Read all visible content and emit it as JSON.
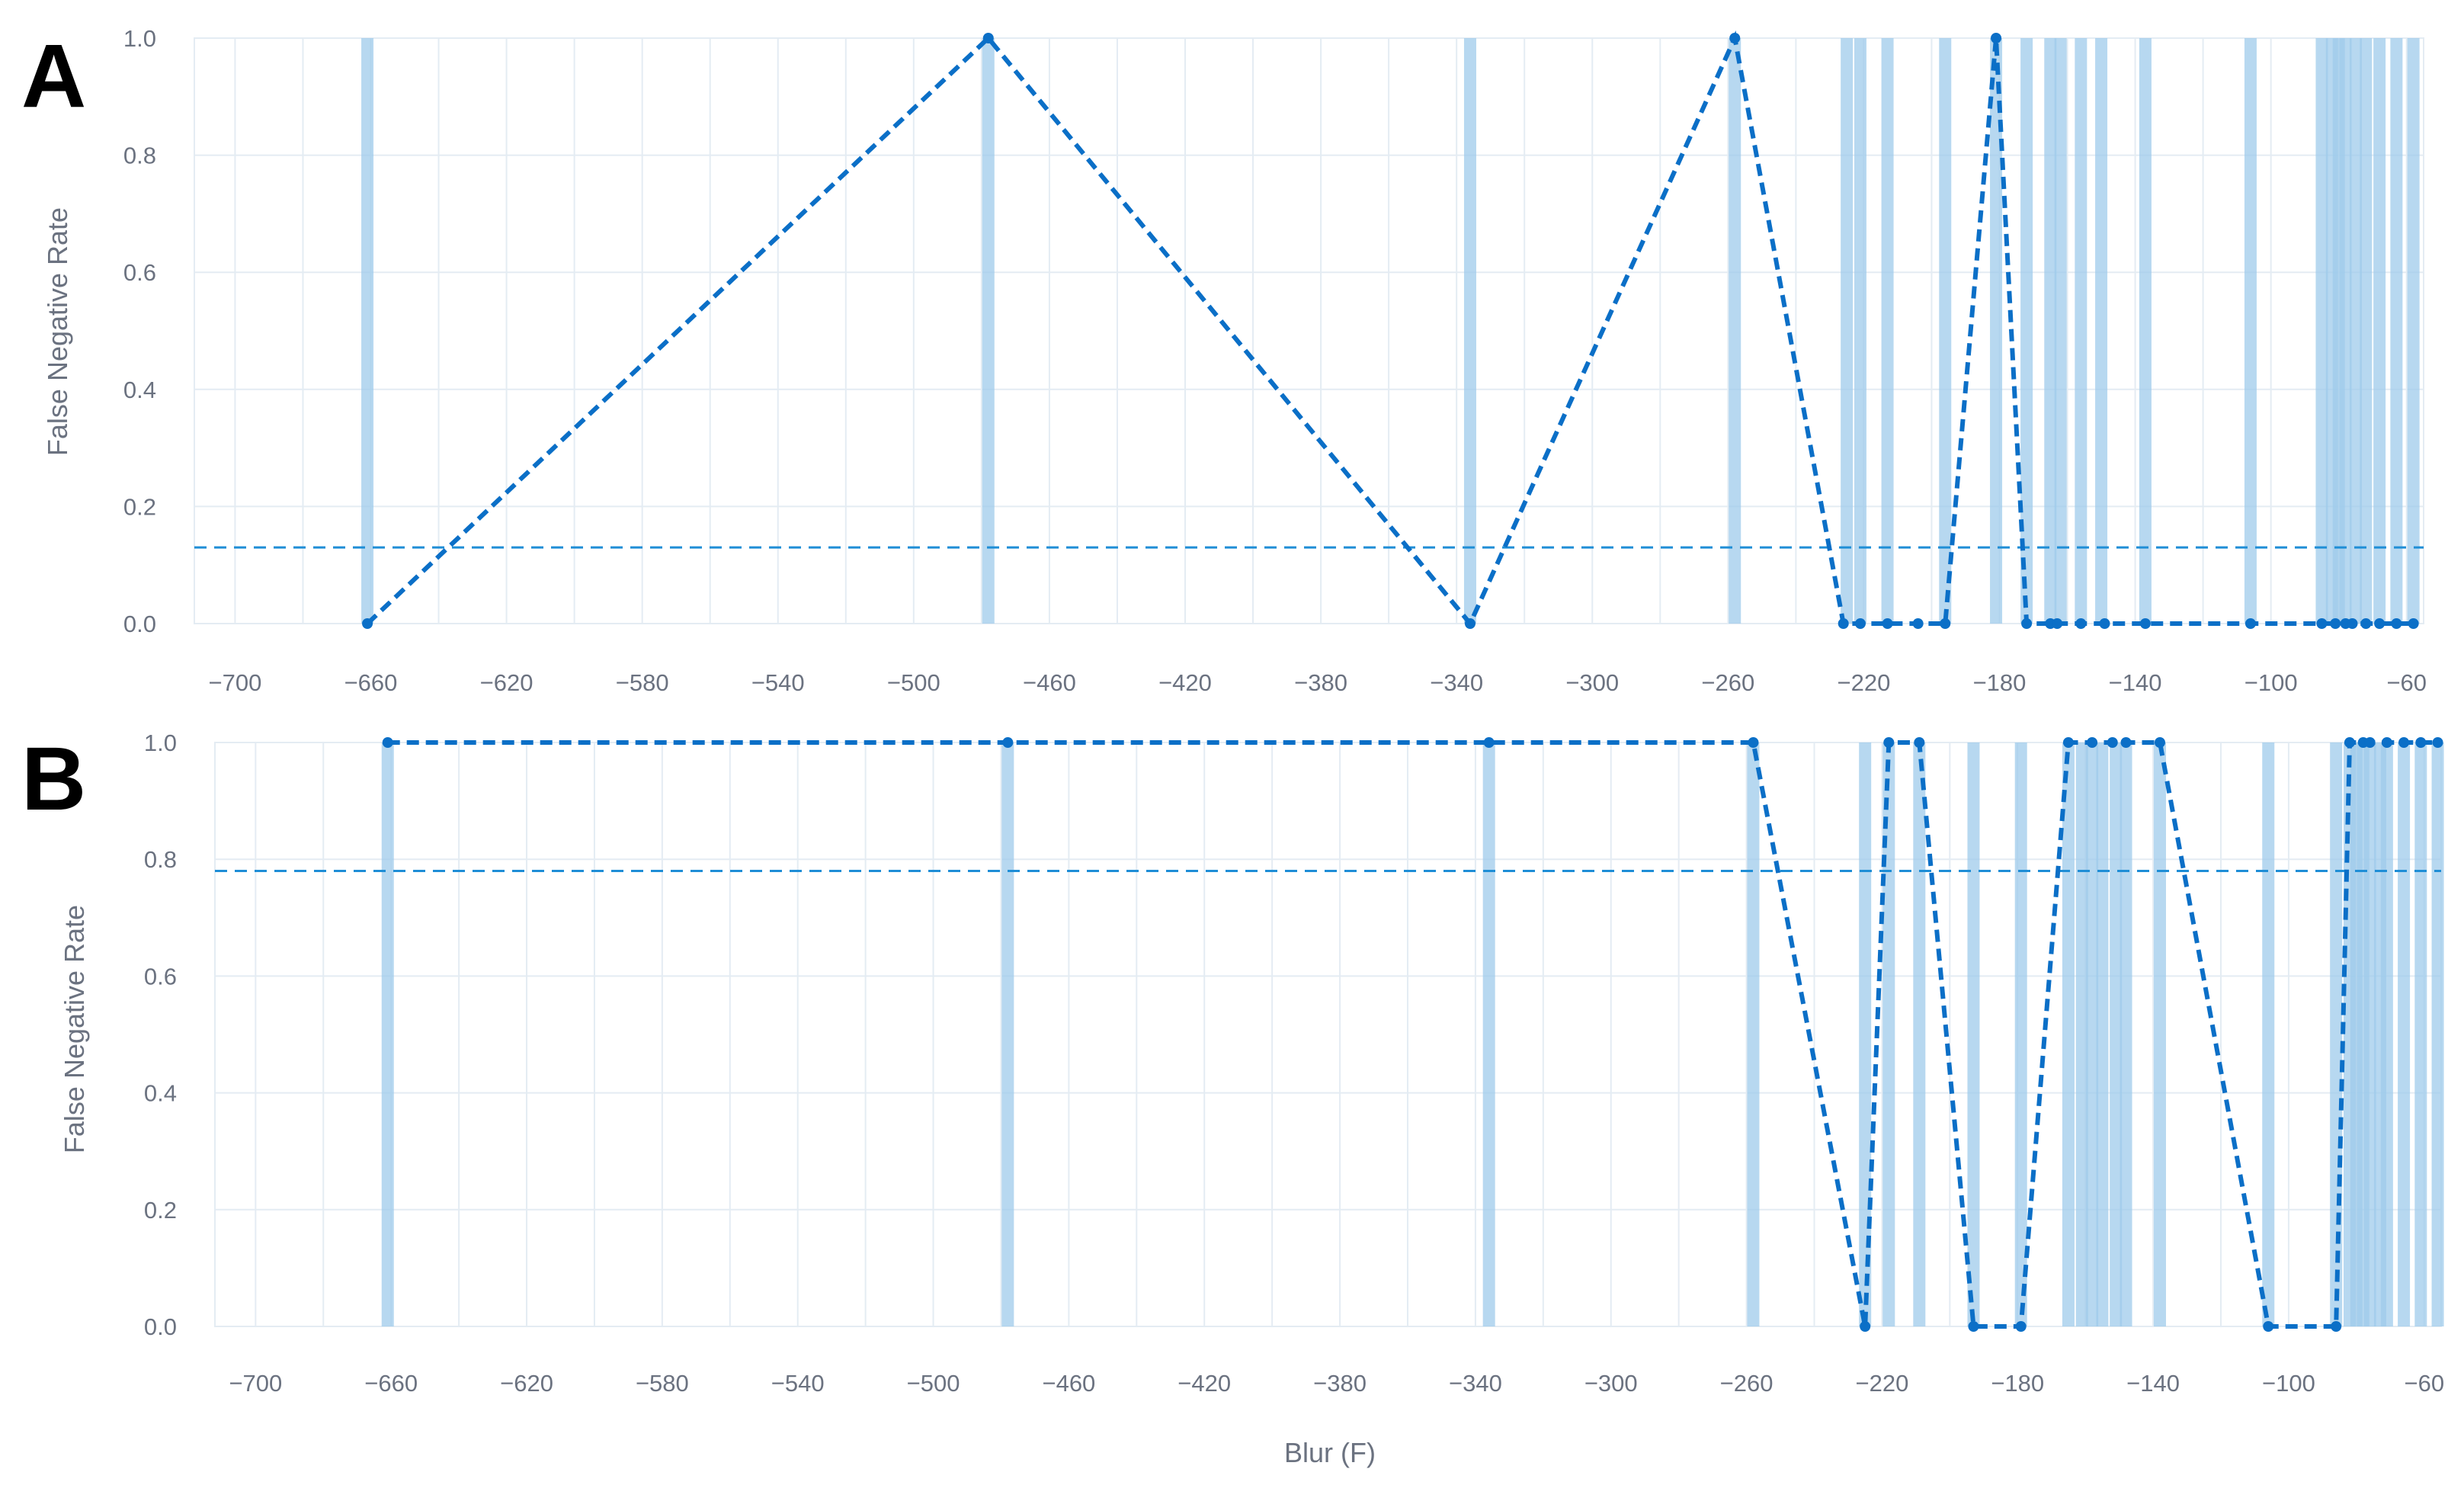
{
  "figure": {
    "panel_labels": [
      "A",
      "B"
    ],
    "colors": {
      "line": "#0b6fc7",
      "threshold": "#1f8ed6",
      "band": "#9fcbeb",
      "grid": "#e4ecf3",
      "text": "#6b7280"
    }
  },
  "chart_data": [
    {
      "type": "line",
      "panel": "A",
      "title": "",
      "xlabel": "",
      "ylabel": "False Negative Rate",
      "xlim": [
        -712,
        -55
      ],
      "ylim": [
        0,
        1
      ],
      "x_ticks": [
        -700,
        -660,
        -620,
        -580,
        -540,
        -500,
        -460,
        -420,
        -380,
        -340,
        -300,
        -260,
        -220,
        -180,
        -140,
        -100,
        -60
      ],
      "y_ticks": [
        0.0,
        0.2,
        0.4,
        0.6,
        0.8,
        1.0
      ],
      "y_tick_labels": [
        "0.0",
        "0.2",
        "0.4",
        "0.6",
        "0.8",
        "1.0"
      ],
      "x_tick_labels": [
        "−700",
        "−660",
        "−620",
        "−580",
        "−540",
        "−500",
        "−460",
        "−420",
        "−380",
        "−340",
        "−300",
        "−260",
        "−220",
        "−180",
        "−140",
        "−100",
        "−60"
      ],
      "threshold": 0.13,
      "grid": true,
      "series": [
        {
          "style": "dashed",
          "points": [
            [
              -661,
              0
            ],
            [
              -478,
              1
            ],
            [
              -336,
              0
            ],
            [
              -258,
              1
            ],
            [
              -226,
              0
            ],
            [
              -221,
              0
            ],
            [
              -213,
              0
            ],
            [
              -204,
              0
            ],
            [
              -196,
              0
            ],
            [
              -181,
              1
            ],
            [
              -172,
              0
            ],
            [
              -165,
              0
            ],
            [
              -163,
              0
            ],
            [
              -156,
              0
            ],
            [
              -149,
              0
            ],
            [
              -137,
              0
            ],
            [
              -106,
              0
            ],
            [
              -85,
              0
            ],
            [
              -81,
              0
            ],
            [
              -78,
              0
            ],
            [
              -76,
              0
            ],
            [
              -72,
              0
            ],
            [
              -68,
              0
            ],
            [
              -63,
              0
            ],
            [
              -58,
              0
            ]
          ]
        }
      ],
      "bands": [
        -661,
        -478,
        -336,
        -258,
        -225,
        -221,
        -213,
        -196,
        -181,
        -172,
        -165,
        -162,
        -156,
        -150,
        -137,
        -106,
        -85,
        -82,
        -80,
        -78,
        -75,
        -72,
        -68,
        -63,
        -58
      ]
    },
    {
      "type": "line",
      "panel": "B",
      "title": "",
      "xlabel": "Blur (F)",
      "ylabel": "False Negative Rate",
      "xlim": [
        -712,
        -55
      ],
      "ylim": [
        0,
        1
      ],
      "x_ticks": [
        -700,
        -660,
        -620,
        -580,
        -540,
        -500,
        -460,
        -420,
        -380,
        -340,
        -300,
        -260,
        -220,
        -180,
        -140,
        -100,
        -60
      ],
      "y_ticks": [
        0.0,
        0.2,
        0.4,
        0.6,
        0.8,
        1.0
      ],
      "y_tick_labels": [
        "0.0",
        "0.2",
        "0.4",
        "0.6",
        "0.8",
        "1.0"
      ],
      "x_tick_labels": [
        "−700",
        "−660",
        "−620",
        "−580",
        "−540",
        "−500",
        "−460",
        "−420",
        "−380",
        "−340",
        "−300",
        "−260",
        "−220",
        "−180",
        "−140",
        "−100",
        "−60"
      ],
      "threshold": 0.78,
      "grid": true,
      "series": [
        {
          "style": "dashed",
          "points": [
            [
              -661,
              1
            ],
            [
              -478,
              1
            ],
            [
              -336,
              1
            ],
            [
              -258,
              1
            ],
            [
              -225,
              0
            ],
            [
              -218,
              1
            ],
            [
              -209,
              1
            ],
            [
              -193,
              0
            ],
            [
              -179,
              0
            ],
            [
              -165,
              1
            ],
            [
              -158,
              1
            ],
            [
              -152,
              1
            ],
            [
              -148,
              1
            ],
            [
              -138,
              1
            ],
            [
              -106,
              0
            ],
            [
              -86,
              0
            ],
            [
              -82,
              1
            ],
            [
              -78,
              1
            ],
            [
              -76,
              1
            ],
            [
              -71,
              1
            ],
            [
              -66,
              1
            ],
            [
              -61,
              1
            ],
            [
              -56,
              1
            ]
          ]
        }
      ],
      "bands": [
        -661,
        -478,
        -336,
        -258,
        -225,
        -218,
        -209,
        -193,
        -179,
        -165,
        -161,
        -158,
        -155,
        -151,
        -148,
        -138,
        -106,
        -86,
        -82,
        -80,
        -78,
        -76,
        -73,
        -71,
        -66,
        -61,
        -56
      ]
    }
  ]
}
